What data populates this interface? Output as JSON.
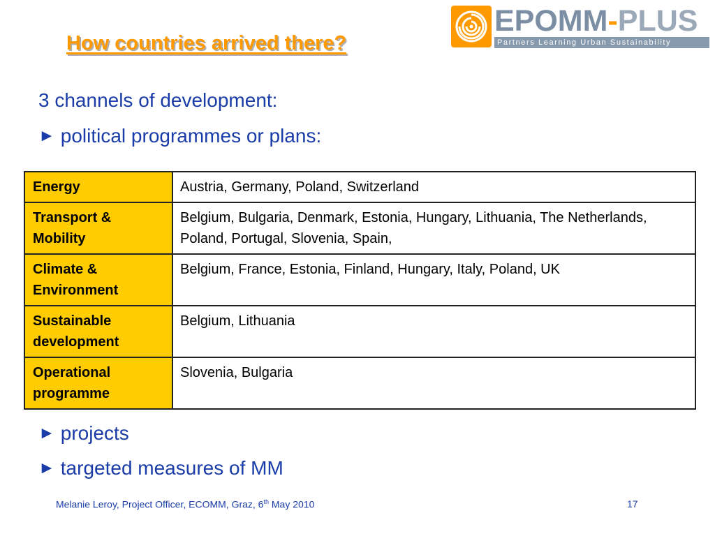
{
  "slide": {
    "title": "How countries arrived there?",
    "logo": {
      "word_a": "EPOMM",
      "word_b": "-",
      "word_c": "PLUS",
      "tagline": "Partners Learning Urban Sustainability"
    },
    "intro": "3 channels of development:",
    "bullets": [
      "political programmes or plans:",
      "projects",
      "targeted measures of MM"
    ],
    "table": [
      {
        "category": "Energy",
        "countries": "Austria, Germany, Poland, Switzerland"
      },
      {
        "category": "Transport & Mobility",
        "countries": "Belgium, Bulgaria, Denmark, Estonia, Hungary, Lithuania, The Netherlands, Poland, Portugal, Slovenia, Spain,"
      },
      {
        "category": "Climate & Environment",
        "countries": "Belgium, France, Estonia, Finland, Hungary, Italy, Poland, UK"
      },
      {
        "category": "Sustainable development",
        "countries": "Belgium, Lithuania"
      },
      {
        "category": "Operational programme",
        "countries": "Slovenia, Bulgaria"
      }
    ],
    "footer": {
      "text_before": "Melanie Leroy, Project Officer, ECOMM, Graz, 6",
      "sup": "th",
      "text_after": " May 2010",
      "page_number": "17"
    },
    "colors": {
      "title": "#ff9900",
      "body_text": "#1a3ca8",
      "table_header_fill": "#ffcc00",
      "logo_orange": "#ff9900",
      "logo_grey": "#7b8ea3"
    },
    "icons": [
      "logo-swirl-icon",
      "arrow-bullet-icon"
    ]
  }
}
